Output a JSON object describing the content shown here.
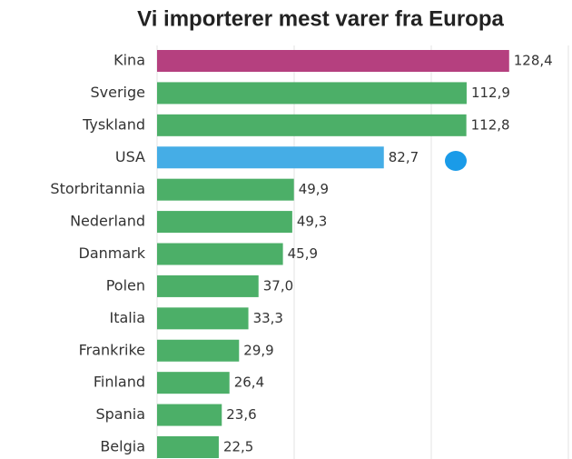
{
  "chart_data": {
    "type": "barh",
    "title": "Vi importerer mest varer fra Europa",
    "categories": [
      "Kina",
      "Sverige",
      "Tyskland",
      "USA",
      "Storbritannia",
      "Nederland",
      "Danmark",
      "Polen",
      "Italia",
      "Frankrike",
      "Finland",
      "Spania",
      "Belgia"
    ],
    "values": [
      128.4,
      112.9,
      112.8,
      82.7,
      49.9,
      49.3,
      45.9,
      37.0,
      33.3,
      29.9,
      26.4,
      23.6,
      22.5
    ],
    "value_labels": [
      "128,4",
      "112,9",
      "112,8",
      "82,7",
      "49,9",
      "49,3",
      "45,9",
      "37,0",
      "33,3",
      "29,9",
      "26,4",
      "23,6",
      "22,5"
    ],
    "colors": [
      "#b5407f",
      "#4caf68",
      "#4caf68",
      "#45ade6",
      "#4caf68",
      "#4caf68",
      "#4caf68",
      "#4caf68",
      "#4caf68",
      "#4caf68",
      "#4caf68",
      "#4caf68",
      "#4caf68"
    ],
    "xlim": [
      0,
      150
    ],
    "xticks": [
      0,
      50,
      100,
      150
    ],
    "grid": true
  }
}
